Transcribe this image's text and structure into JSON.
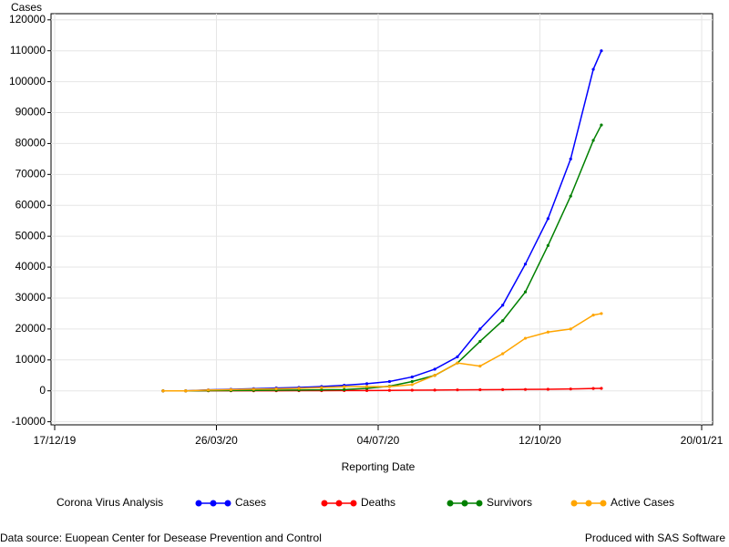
{
  "chart_data": {
    "type": "line",
    "y_label": "Cases",
    "x_label": "Reporting Date",
    "legend_title": "Corona Virus Analysis",
    "footnote_left": "Data source: Euopean Center for Desease Prevention and Control",
    "footnote_right": "Produced with SAS Software",
    "legend": "bottom",
    "grid": true,
    "x": [
      "2020-02-22",
      "2020-03-07",
      "2020-03-21",
      "2020-04-04",
      "2020-04-18",
      "2020-05-02",
      "2020-05-16",
      "2020-05-30",
      "2020-06-13",
      "2020-06-27",
      "2020-07-11",
      "2020-07-25",
      "2020-08-08",
      "2020-08-22",
      "2020-09-05",
      "2020-09-19",
      "2020-10-03",
      "2020-10-17",
      "2020-10-31",
      "2020-11-14",
      "2020-11-19"
    ],
    "series": [
      {
        "name": "Cases",
        "color": "#0000ff",
        "values": [
          0,
          0,
          300,
          500,
          700,
          900,
          1100,
          1400,
          1800,
          2300,
          3000,
          4500,
          7000,
          11000,
          20000,
          27700,
          41000,
          55700,
          75000,
          104000,
          110000
        ]
      },
      {
        "name": "Deaths",
        "color": "#ff0000",
        "values": [
          0,
          0,
          10,
          20,
          30,
          40,
          50,
          60,
          80,
          100,
          150,
          200,
          250,
          300,
          350,
          400,
          450,
          500,
          600,
          750,
          800
        ]
      },
      {
        "name": "Survivors",
        "color": "#008000",
        "values": [
          0,
          0,
          50,
          100,
          150,
          200,
          250,
          300,
          400,
          800,
          1500,
          3000,
          5000,
          9000,
          16000,
          22700,
          32000,
          47000,
          63000,
          81000,
          86000
        ]
      },
      {
        "name": "Active Cases",
        "color": "#ffa500",
        "values": [
          0,
          0,
          240,
          380,
          520,
          660,
          800,
          1040,
          1320,
          1400,
          1350,
          2000,
          5000,
          9000,
          8000,
          12000,
          17000,
          19000,
          20000,
          24500,
          25000
        ]
      }
    ],
    "xlim": [
      "2019-12-17",
      "2021-01-20"
    ],
    "xticks": [
      {
        "value": "2019-12-17",
        "label": "17/12/19"
      },
      {
        "value": "2020-03-26",
        "label": "26/03/20"
      },
      {
        "value": "2020-07-04",
        "label": "04/07/20"
      },
      {
        "value": "2020-10-12",
        "label": "12/10/20"
      },
      {
        "value": "2021-01-20",
        "label": "20/01/21"
      }
    ],
    "ylim": [
      -11000,
      122000
    ],
    "yticks": [
      -10000,
      0,
      10000,
      20000,
      30000,
      40000,
      50000,
      60000,
      70000,
      80000,
      90000,
      100000,
      110000,
      120000
    ]
  }
}
